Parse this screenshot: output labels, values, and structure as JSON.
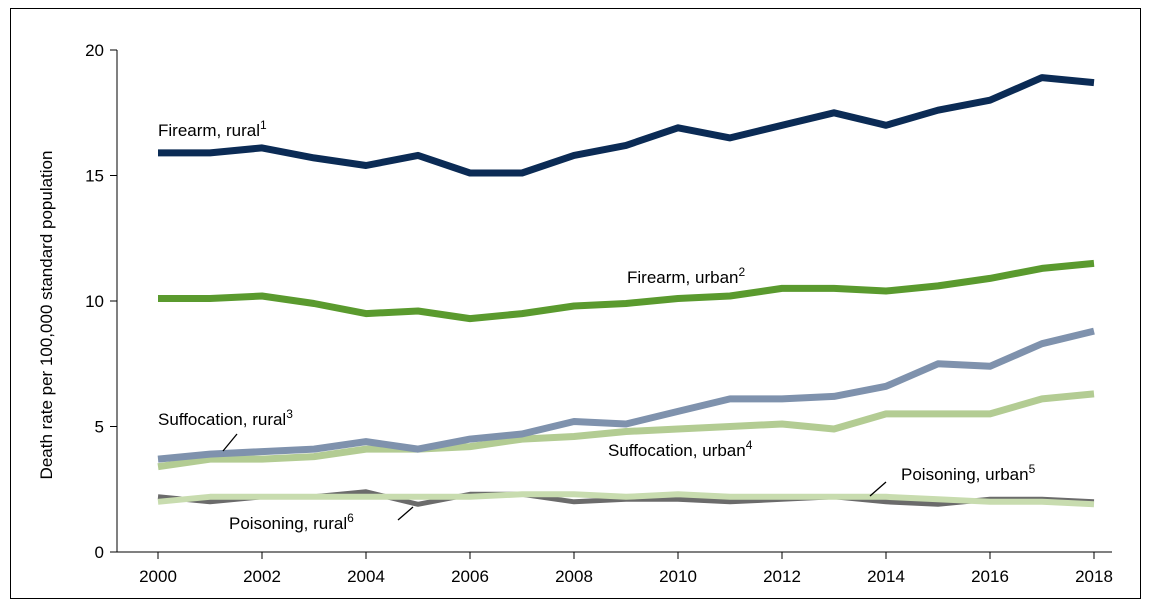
{
  "chart_data": {
    "type": "line",
    "ylabel": "Death rate per 100,000 standard population",
    "xlabel": "",
    "ylim": [
      0,
      20
    ],
    "xlim": [
      2000,
      2018
    ],
    "y_ticks": [
      "0",
      "5",
      "10",
      "15",
      "20"
    ],
    "x_ticks": [
      "2000",
      "2002",
      "2004",
      "2006",
      "2008",
      "2010",
      "2012",
      "2014",
      "2016",
      "2018"
    ],
    "x": [
      2000,
      2001,
      2002,
      2003,
      2004,
      2005,
      2006,
      2007,
      2008,
      2009,
      2010,
      2011,
      2012,
      2013,
      2014,
      2015,
      2016,
      2017,
      2018
    ],
    "series": [
      {
        "key": "firearm_rural",
        "label": "Firearm, rural",
        "sup": "1",
        "color": "#0b2b55",
        "values": [
          15.9,
          15.9,
          16.1,
          15.7,
          15.4,
          15.8,
          15.1,
          15.1,
          15.8,
          16.2,
          16.9,
          16.5,
          17.0,
          17.5,
          17.0,
          17.6,
          18.0,
          18.9,
          18.7
        ]
      },
      {
        "key": "firearm_urban",
        "label": "Firearm, urban",
        "sup": "2",
        "color": "#5a9a2e",
        "values": [
          10.1,
          10.1,
          10.2,
          9.9,
          9.5,
          9.6,
          9.3,
          9.5,
          9.8,
          9.9,
          10.1,
          10.2,
          10.5,
          10.5,
          10.4,
          10.6,
          10.9,
          11.3,
          11.5
        ]
      },
      {
        "key": "suffocation_rural",
        "label": "Suffocation, rural",
        "sup": "3",
        "color": "#7f92ad",
        "values": [
          3.7,
          3.9,
          4.0,
          4.1,
          4.4,
          4.1,
          4.5,
          4.7,
          5.2,
          5.1,
          5.6,
          6.1,
          6.1,
          6.2,
          6.6,
          7.5,
          7.4,
          8.3,
          8.8
        ]
      },
      {
        "key": "suffocation_urban",
        "label": "Suffocation, urban",
        "sup": "4",
        "color": "#b3cc93",
        "values": [
          3.4,
          3.7,
          3.7,
          3.8,
          4.1,
          4.1,
          4.2,
          4.5,
          4.6,
          4.8,
          4.9,
          5.0,
          5.1,
          4.9,
          5.5,
          5.5,
          5.5,
          6.1,
          6.3
        ]
      },
      {
        "key": "poisoning_rural",
        "label": "Poisoning, rural",
        "sup": "6",
        "color": "#6b6b6b",
        "values": [
          2.2,
          2.0,
          2.2,
          2.2,
          2.4,
          1.9,
          2.3,
          2.3,
          2.0,
          2.1,
          2.1,
          2.0,
          2.1,
          2.2,
          2.0,
          1.9,
          2.1,
          2.1,
          2.0
        ]
      },
      {
        "key": "poisoning_urban",
        "label": "Poisoning, urban",
        "sup": "5",
        "color": "#c8dcaf",
        "values": [
          2.0,
          2.2,
          2.2,
          2.2,
          2.2,
          2.2,
          2.2,
          2.3,
          2.3,
          2.2,
          2.3,
          2.2,
          2.2,
          2.2,
          2.2,
          2.1,
          2.0,
          2.0,
          1.9
        ]
      }
    ],
    "legend": "inline labels"
  }
}
